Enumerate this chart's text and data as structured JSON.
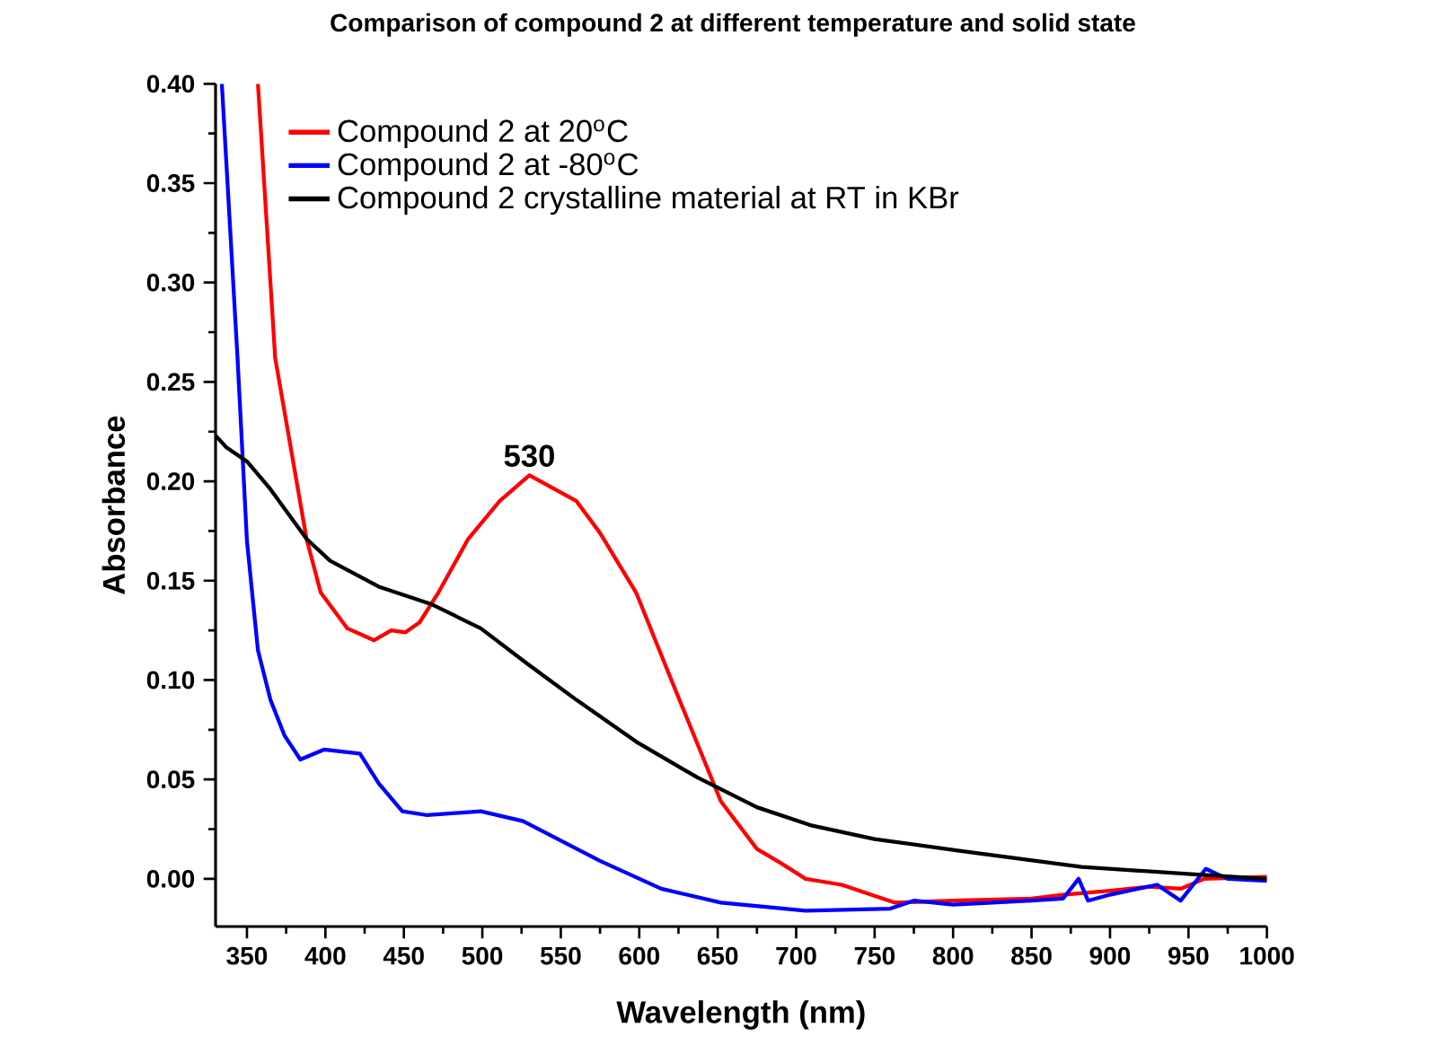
{
  "chart_data": {
    "type": "line",
    "title": "Comparison of compound 2 at different temperature and solid state",
    "xlabel": "Wavelength (nm)",
    "ylabel": "Absorbance",
    "xlim": [
      330,
      1000
    ],
    "ylim": [
      -0.024,
      0.4
    ],
    "xticks": [
      350,
      400,
      450,
      500,
      550,
      600,
      650,
      700,
      750,
      800,
      850,
      900,
      950,
      1000
    ],
    "yticks": [
      {
        "value": 0,
        "label": "0.00"
      },
      {
        "value": 0.05,
        "label": "0.05"
      },
      {
        "value": 0.1,
        "label": "0.10"
      },
      {
        "value": 0.15,
        "label": "0.15"
      },
      {
        "value": 0.2,
        "label": "0.20"
      },
      {
        "value": 0.25,
        "label": "0.25"
      },
      {
        "value": 0.3,
        "label": "0.30"
      },
      {
        "value": 0.35,
        "label": "0.35"
      },
      {
        "value": 0.4,
        "label": "0.40"
      }
    ],
    "grid": false,
    "legend": "top left",
    "marker": "none",
    "line_style": "solid",
    "annotations": [
      {
        "text": "530",
        "x": 530,
        "y": 0.203
      }
    ],
    "series": [
      {
        "name": "Compound 2 at 20$^{o}$C",
        "color": "#ff0000",
        "x": [
          357,
          368,
          388,
          397,
          414,
          431,
          442,
          451,
          460,
          472,
          491,
          511,
          530,
          560,
          575,
          598,
          621,
          652,
          675,
          690,
          706,
          729,
          763,
          800,
          850,
          870,
          900,
          925,
          945,
          960,
          1000
        ],
        "values": [
          0.4,
          0.262,
          0.171,
          0.144,
          0.126,
          0.12,
          0.125,
          0.124,
          0.129,
          0.144,
          0.171,
          0.19,
          0.203,
          0.19,
          0.174,
          0.144,
          0.099,
          0.039,
          0.015,
          0.008,
          0.0,
          -0.003,
          -0.012,
          -0.011,
          -0.01,
          -0.008,
          -0.006,
          -0.004,
          -0.005,
          0.0,
          0.001
        ]
      },
      {
        "name": "Compound 2 at -80$^{o}$C",
        "color": "#0000ff",
        "x": [
          334,
          344,
          350,
          357,
          365,
          374,
          384,
          399,
          422,
          434,
          449,
          465,
          499,
          526,
          575,
          614,
          652,
          706,
          760,
          775,
          800,
          850,
          870,
          880,
          886,
          900,
          930,
          945,
          961,
          975,
          1000
        ],
        "values": [
          0.4,
          0.262,
          0.17,
          0.115,
          0.09,
          0.072,
          0.06,
          0.065,
          0.063,
          0.048,
          0.034,
          0.032,
          0.034,
          0.029,
          0.009,
          -0.005,
          -0.012,
          -0.016,
          -0.015,
          -0.011,
          -0.013,
          -0.011,
          -0.01,
          0.0,
          -0.011,
          -0.008,
          -0.003,
          -0.011,
          0.005,
          0.0,
          -0.001
        ]
      },
      {
        "name": "Compound 2 crystalline material at RT in KBr",
        "color": "#000000",
        "x": [
          330,
          337,
          350,
          365,
          388,
          403,
          434,
          468,
          499,
          529,
          560,
          598,
          637,
          675,
          709,
          750,
          805,
          882,
          958,
          1000
        ],
        "values": [
          0.223,
          0.217,
          0.21,
          0.196,
          0.171,
          0.16,
          0.147,
          0.138,
          0.126,
          0.108,
          0.09,
          0.069,
          0.051,
          0.036,
          0.027,
          0.02,
          0.014,
          0.006,
          0.002,
          0.0
        ]
      }
    ]
  }
}
